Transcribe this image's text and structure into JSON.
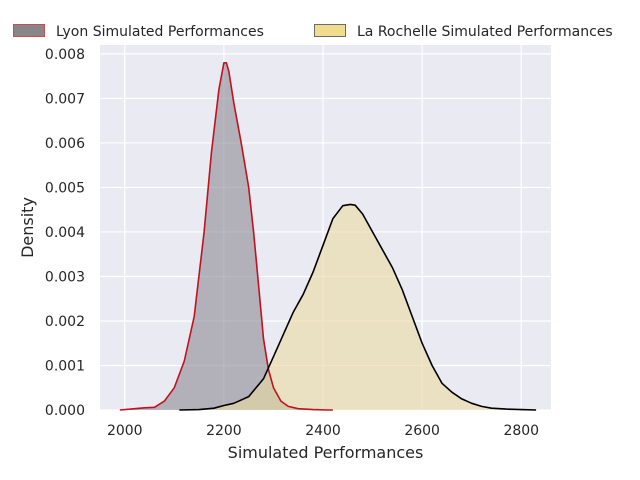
{
  "chart_data": {
    "type": "area",
    "title": "",
    "xlabel": "Simulated Performances",
    "ylabel": "Density",
    "xlim": [
      1950,
      2860
    ],
    "ylim": [
      0,
      0.0082
    ],
    "xticks": [
      2000,
      2200,
      2400,
      2600,
      2800
    ],
    "yticks": [
      0.0,
      0.001,
      0.002,
      0.003,
      0.004,
      0.005,
      0.006,
      0.007,
      0.008
    ],
    "ytick_labels": [
      "0.000",
      "0.001",
      "0.002",
      "0.003",
      "0.004",
      "0.005",
      "0.006",
      "0.007",
      "0.008"
    ],
    "xtick_labels": [
      "2000",
      "2200",
      "2400",
      "2600",
      "2800"
    ],
    "grid": true,
    "legend_position": "top",
    "background": "#eaeaf2",
    "series": [
      {
        "name": "Lyon Simulated Performances",
        "fill": "#8c8a94",
        "fill_opacity": 0.6,
        "line": "#c0121e",
        "legend_fill": "#8a8587",
        "legend_edge": "#c44e52",
        "x": [
          1990,
          2020,
          2040,
          2060,
          2080,
          2100,
          2120,
          2140,
          2160,
          2175,
          2190,
          2200,
          2205,
          2210,
          2220,
          2235,
          2250,
          2260,
          2270,
          2280,
          2290,
          2300,
          2315,
          2330,
          2350,
          2380,
          2410,
          2420
        ],
        "y": [
          0.0,
          3e-05,
          5e-05,
          6e-05,
          0.0002,
          0.0005,
          0.0011,
          0.0021,
          0.004,
          0.0058,
          0.0072,
          0.0078,
          0.0078,
          0.0076,
          0.0069,
          0.006,
          0.005,
          0.004,
          0.0028,
          0.0016,
          0.0009,
          0.0005,
          0.0002,
          8e-05,
          3e-05,
          1e-05,
          0.0,
          0.0
        ]
      },
      {
        "name": "La Rochelle Simulated Performances",
        "fill": "#ead9a1",
        "fill_opacity": 0.6,
        "line": "#000000",
        "legend_fill": "#f0dc8e",
        "legend_edge": "#6b6b6b",
        "x": [
          2110,
          2150,
          2180,
          2200,
          2220,
          2250,
          2280,
          2300,
          2320,
          2340,
          2360,
          2380,
          2400,
          2420,
          2440,
          2455,
          2465,
          2480,
          2500,
          2520,
          2540,
          2560,
          2580,
          2600,
          2620,
          2640,
          2660,
          2680,
          2700,
          2720,
          2740,
          2770,
          2800,
          2830
        ],
        "y": [
          0.0,
          1e-05,
          4e-05,
          0.0001,
          0.00015,
          0.0003,
          0.0007,
          0.0012,
          0.0017,
          0.0022,
          0.0026,
          0.0031,
          0.0037,
          0.0043,
          0.00459,
          0.00462,
          0.0046,
          0.0044,
          0.004,
          0.0036,
          0.0032,
          0.0027,
          0.0021,
          0.0015,
          0.001,
          0.0006,
          0.0004,
          0.00025,
          0.00015,
          8e-05,
          4e-05,
          2e-05,
          1e-05,
          0.0
        ]
      }
    ]
  }
}
